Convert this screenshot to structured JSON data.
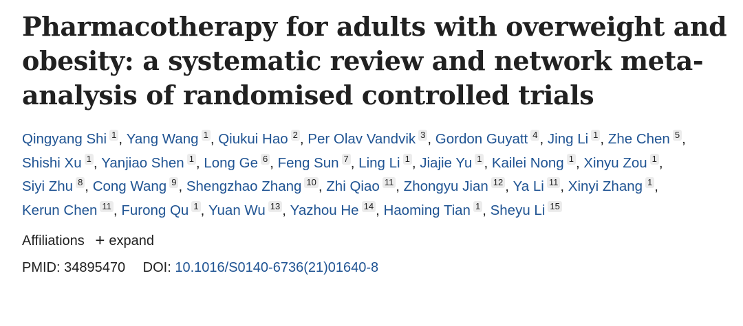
{
  "article": {
    "title": "Pharmacotherapy for adults with overweight and obesity: a systematic review and network meta-analysis of randomised controlled trials",
    "authors": [
      {
        "name": "Qingyang Shi",
        "aff": "1"
      },
      {
        "name": "Yang Wang",
        "aff": "1"
      },
      {
        "name": "Qiukui Hao",
        "aff": "2"
      },
      {
        "name": "Per Olav Vandvik",
        "aff": "3"
      },
      {
        "name": "Gordon Guyatt",
        "aff": "4"
      },
      {
        "name": "Jing Li",
        "aff": "1"
      },
      {
        "name": "Zhe Chen",
        "aff": "5"
      },
      {
        "name": "Shishi Xu",
        "aff": "1"
      },
      {
        "name": "Yanjiao Shen",
        "aff": "1"
      },
      {
        "name": "Long Ge",
        "aff": "6"
      },
      {
        "name": "Feng Sun",
        "aff": "7"
      },
      {
        "name": "Ling Li",
        "aff": "1"
      },
      {
        "name": "Jiajie Yu",
        "aff": "1"
      },
      {
        "name": "Kailei Nong",
        "aff": "1"
      },
      {
        "name": "Xinyu Zou",
        "aff": "1"
      },
      {
        "name": "Siyi Zhu",
        "aff": "8"
      },
      {
        "name": "Cong Wang",
        "aff": "9"
      },
      {
        "name": "Shengzhao Zhang",
        "aff": "10"
      },
      {
        "name": "Zhi Qiao",
        "aff": "11"
      },
      {
        "name": "Zhongyu Jian",
        "aff": "12"
      },
      {
        "name": "Ya Li",
        "aff": "11"
      },
      {
        "name": "Xinyi Zhang",
        "aff": "1"
      },
      {
        "name": "Kerun Chen",
        "aff": "11"
      },
      {
        "name": "Furong Qu",
        "aff": "1"
      },
      {
        "name": "Yuan Wu",
        "aff": "13"
      },
      {
        "name": "Yazhou He",
        "aff": "14"
      },
      {
        "name": "Haoming Tian",
        "aff": "1"
      },
      {
        "name": "Sheyu Li",
        "aff": "15"
      }
    ],
    "author_separator": ", ",
    "affiliations_label": "Affiliations",
    "expand_icon": "plus-icon",
    "expand_label": "expand",
    "pmid_label": "PMID:",
    "pmid": "34895470",
    "doi_label": "DOI:",
    "doi": "10.1016/S0140-6736(21)01640-8"
  },
  "colors": {
    "link": "#205493",
    "text": "#212121",
    "badge_bg": "#ececec"
  }
}
